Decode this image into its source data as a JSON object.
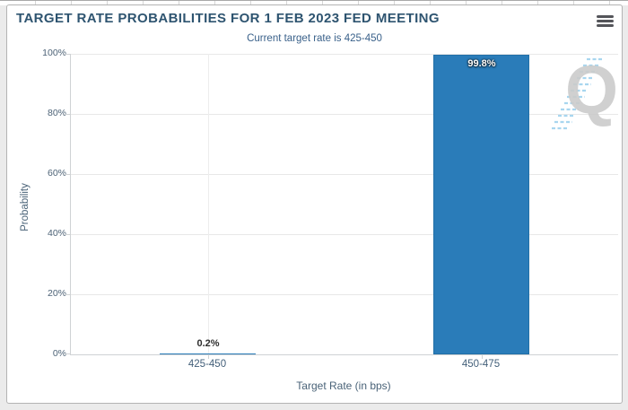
{
  "panel": {
    "watermark_letter": "Q",
    "icons": {
      "menu": "hamburger-icon",
      "watermark": "q-logo-with-speed-lines"
    }
  },
  "chart_data": {
    "type": "bar",
    "title": "TARGET RATE PROBABILITIES FOR 1 FEB 2023 FED MEETING",
    "subtitle": "Current target rate is 425-450",
    "categories": [
      "425-450",
      "450-475"
    ],
    "values": [
      0.2,
      99.8
    ],
    "data_labels": [
      "0.2%",
      "99.8%"
    ],
    "xlabel": "Target Rate (in bps)",
    "ylabel": "Probability",
    "ylim": [
      0,
      100
    ],
    "ytick_step": 20,
    "ytick_labels": [
      "0%",
      "20%",
      "40%",
      "60%",
      "80%",
      "100%"
    ],
    "grid": true,
    "legend": "none",
    "bar_color": "#2A7CB9"
  },
  "colors": {
    "page_bg": "#ebebeb",
    "panel_bg": "#ffffff",
    "panel_border": "#b3b3b3",
    "title_text": "#2E5470",
    "subtitle_text": "#3A618A",
    "axis_text": "#4D6377",
    "grid_line": "#e8e8e8",
    "axis_line": "#cfd2d4",
    "bar_fill": "#2A7CB9",
    "data_label_inside": "#ffffff",
    "data_label_outside": "#2e2e2e",
    "watermark_gray": "#cbcbcb",
    "watermark_blue": "#a8d6ef",
    "menu_icon": "#54555A"
  }
}
